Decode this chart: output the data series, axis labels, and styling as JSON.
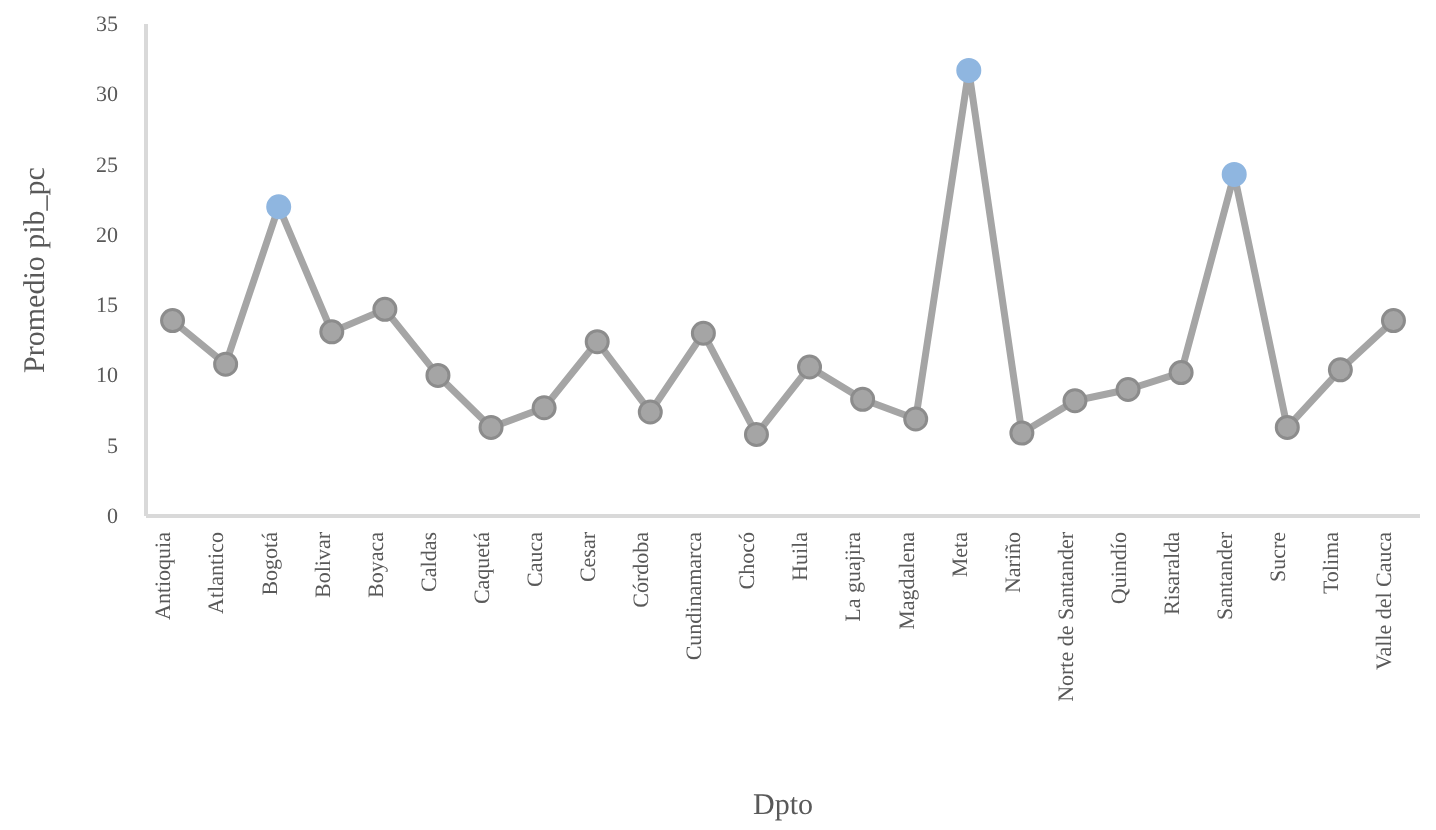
{
  "chart_data": {
    "type": "line",
    "xlabel": "Dpto",
    "ylabel": "Promedio pib_pc",
    "categories": [
      "Antioquia",
      "Atlantico",
      "Bogotá",
      "Bolivar",
      "Boyaca",
      "Caldas",
      "Caquetá",
      "Cauca",
      "Cesar",
      "Córdoba",
      "Cundinamarca",
      "Chocó",
      "Huila",
      "La guajira",
      "Magdalena",
      "Meta",
      "Nariño",
      "Norte de Santander",
      "Quindío",
      "Risaralda",
      "Santander",
      "Sucre",
      "Tolima",
      "Valle del Cauca"
    ],
    "series": [
      {
        "color": "#a5a5a5",
        "values": [
          13.9,
          10.8,
          22,
          13.1,
          14.7,
          10.0,
          6.3,
          7.7,
          12.4,
          7.4,
          13.0,
          5.8,
          10.6,
          8.3,
          6.9,
          31.7,
          5.9,
          8.2,
          9.0,
          10.2,
          24.3,
          6.3,
          10.4,
          13.9
        ],
        "colors": [
          "#a5a5a5",
          "#a5a5a5",
          "#8fb6e0",
          "#a5a5a5",
          "#a5a5a5",
          "#a5a5a5",
          "#a5a5a5",
          "#a5a5a5",
          "#a5a5a5",
          "#a5a5a5",
          "#a5a5a5",
          "#a5a5a5",
          "#a5a5a5",
          "#a5a5a5",
          "#a5a5a5",
          "#8fb6e0",
          "#a5a5a5",
          "#a5a5a5",
          "#a5a5a5",
          "#a5a5a5",
          "#8fb6e0",
          "#a5a5a5",
          "#a5a5a5",
          "#a5a5a5"
        ]
      }
    ],
    "ylim": [
      0,
      35
    ],
    "yticks": [
      0,
      5,
      10,
      15,
      20,
      25,
      30,
      35
    ],
    "grid": false,
    "marker": "circle"
  }
}
